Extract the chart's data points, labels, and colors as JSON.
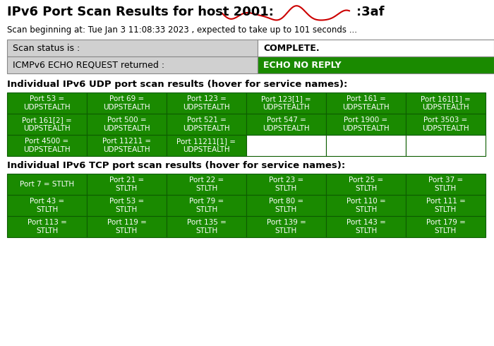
{
  "title_left": "IPv6 Port Scan Results for host 2001:",
  "title_right": ":3af",
  "subtitle": "Scan beginning at: Tue Jan 3 11:08:33 2023 , expected to take up to 101 seconds ...",
  "status_label": "Scan status is :",
  "status_value": "COMPLETE.",
  "icmp_label": "ICMPv6 ECHO REQUEST returned :",
  "icmp_value": "ECHO NO REPLY",
  "udp_section_title": "Individual IPv6 UDP port scan results (hover for service names):",
  "tcp_section_title": "Individual IPv6 TCP port scan results (hover for service names):",
  "udp_ports": [
    [
      "Port 53 =\nUDPSTEALTH",
      "Port 69 =\nUDPSTEALTH",
      "Port 123 =\nUDPSTEALTH",
      "Port 123[1] =\nUDPSTEALTH",
      "Port 161 =\nUDPSTEALTH",
      "Port 161[1] =\nUDPSTEALTH"
    ],
    [
      "Port 161[2] =\nUDPSTEALTH",
      "Port 500 =\nUDPSTEALTH",
      "Port 521 =\nUDPSTEALTH",
      "Port 547 =\nUDPSTEALTH",
      "Port 1900 =\nUDPSTEALTH",
      "Port 3503 =\nUDPSTEALTH"
    ],
    [
      "Port 4500 =\nUDPSTEALTH",
      "Port 11211 =\nUDPSTEALTH",
      "Port 11211[1] =\nUDPSTEALTH",
      "",
      "",
      ""
    ]
  ],
  "tcp_ports": [
    [
      "Port 7 = STLTH",
      "Port 21 =\nSTLTH",
      "Port 22 =\nSTLTH",
      "Port 23 =\nSTLTH",
      "Port 25 =\nSTLTH",
      "Port 37 =\nSTLTH"
    ],
    [
      "Port 43 =\nSTLTH",
      "Port 53 =\nSTLTH",
      "Port 79 =\nSTLTH",
      "Port 80 =\nSTLTH",
      "Port 110 =\nSTLTH",
      "Port 111 =\nSTLTH"
    ],
    [
      "Port 113 =\nSTLTH",
      "Port 119 =\nSTLTH",
      "Port 135 =\nSTLTH",
      "Port 139 =\nSTLTH",
      "Port 143 =\nSTLTH",
      "Port 179 =\nSTLTH"
    ]
  ],
  "green_color": "#1a8a00",
  "dark_green_border": "#0d5c00",
  "light_gray": "#d0d0d0",
  "white": "#ffffff",
  "black": "#000000",
  "red_line_color": "#cc0000",
  "bg_color": "#ffffff",
  "title_fontsize": 13,
  "subtitle_fontsize": 8.5,
  "section_fontsize": 9.5,
  "cell_fontsize": 7.5,
  "status_fontsize": 9
}
